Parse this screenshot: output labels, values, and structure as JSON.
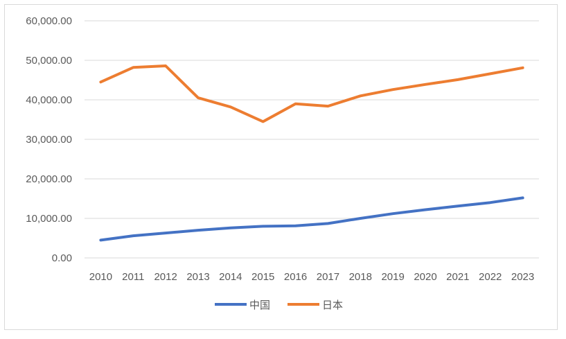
{
  "chart_data": {
    "type": "line",
    "title": "",
    "xlabel": "",
    "ylabel": "",
    "categories": [
      "2010",
      "2011",
      "2012",
      "2013",
      "2014",
      "2015",
      "2016",
      "2017",
      "2018",
      "2019",
      "2020",
      "2021",
      "2022",
      "2023"
    ],
    "ylim": [
      0,
      60000
    ],
    "yticks": [
      0,
      10000,
      20000,
      30000,
      40000,
      50000,
      60000
    ],
    "ytick_labels": [
      "0.00",
      "10,000.00",
      "20,000.00",
      "30,000.00",
      "40,000.00",
      "50,000.00",
      "60,000.00"
    ],
    "grid": true,
    "legend_position": "bottom",
    "series": [
      {
        "name": "中国",
        "color": "#4472c4",
        "values": [
          4500,
          5600,
          6300,
          7000,
          7600,
          8000,
          8100,
          8700,
          10000,
          11200,
          12200,
          13100,
          14000,
          15200
        ]
      },
      {
        "name": "日本",
        "color": "#ed7d31",
        "values": [
          44500,
          48200,
          48600,
          40500,
          38200,
          34500,
          39000,
          38400,
          41000,
          42600,
          43900,
          45100,
          46600,
          48100
        ]
      }
    ]
  }
}
